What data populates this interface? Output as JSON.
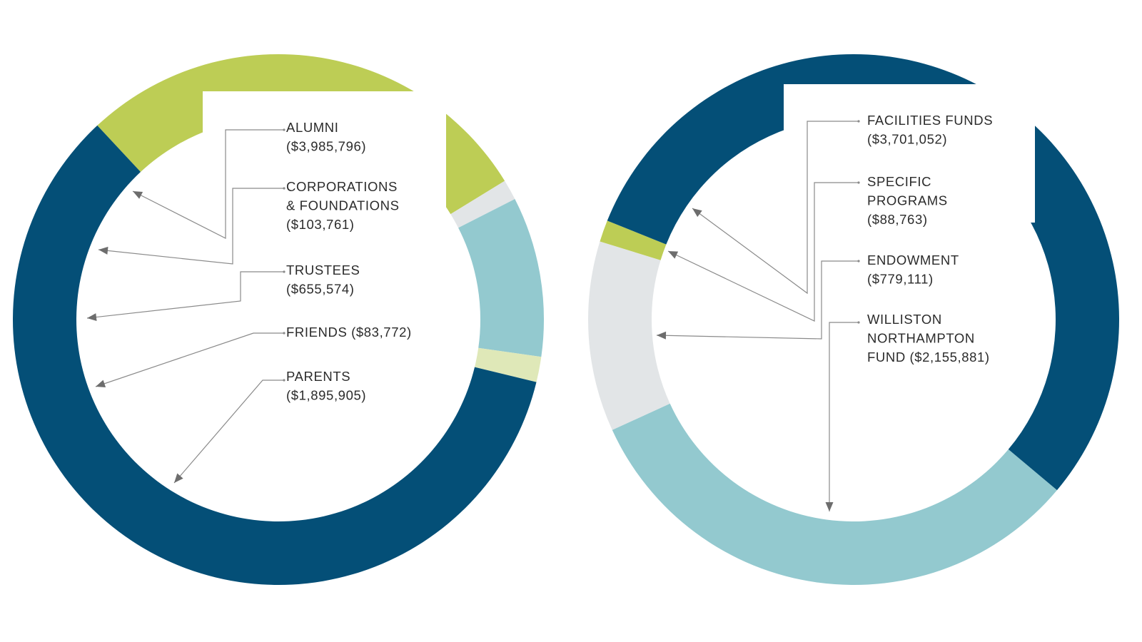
{
  "chart_data": [
    {
      "type": "pie",
      "donut": true,
      "categories": [
        "ALUMNI",
        "CORPORATIONS & FOUNDATIONS",
        "TRUSTEES",
        "FRIENDS",
        "PARENTS"
      ],
      "values": [
        3985796,
        103761,
        655574,
        83772,
        1895905
      ],
      "colors": [
        "#044f77",
        "#dfe8b8",
        "#93c9cf",
        "#e2e5e7",
        "#bdcd55"
      ],
      "labels": [
        [
          "ALUMNI",
          "($3,985,796)"
        ],
        [
          "CORPORATIONS",
          "& FOUNDATIONS",
          "($103,761)"
        ],
        [
          "TRUSTEES",
          "($655,574)"
        ],
        [
          "FRIENDS ($83,772)"
        ],
        [
          "PARENTS",
          "($1,895,905)"
        ]
      ]
    },
    {
      "type": "pie",
      "donut": true,
      "categories": [
        "FACILITIES FUNDS",
        "SPECIFIC PROGRAMS",
        "ENDOWMENT",
        "WILLISTON NORTHAMPTON FUND"
      ],
      "values": [
        3701052,
        88763,
        779111,
        2155881
      ],
      "colors": [
        "#044f77",
        "#bdcd55",
        "#e2e5e7",
        "#93c9cf"
      ],
      "labels": [
        [
          "FACILITIES FUNDS",
          "($3,701,052)"
        ],
        [
          "SPECIFIC",
          "PROGRAMS",
          "($88,763)"
        ],
        [
          "ENDOWMENT",
          "($779,111)"
        ],
        [
          "WILLISTON",
          "NORTHAMPTON",
          "FUND ($2,155,881)"
        ]
      ]
    }
  ]
}
